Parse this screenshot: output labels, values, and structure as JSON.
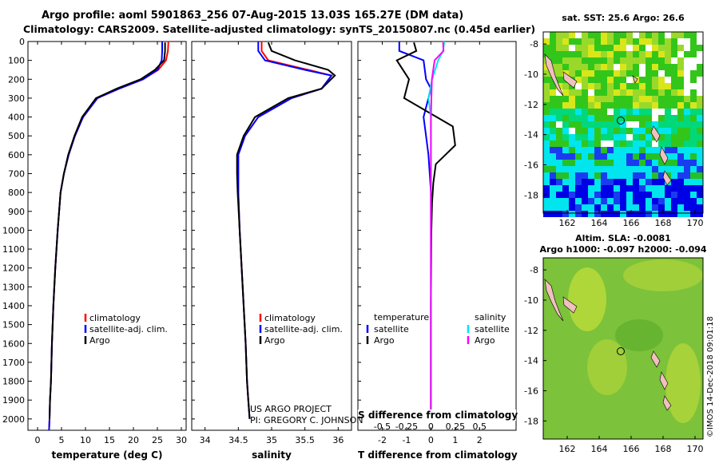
{
  "header": {
    "title": "Argo profile: aoml 5901863_256 07-Aug-2015 13.03S 165.27E (DM data)",
    "subtitle": "Climatology: CARS2009. Satellite-adjusted climatology: synTS_20150807.nc (0.45d earlier)"
  },
  "map_top": {
    "title": "sat. SST: 25.6 Argo: 26.6",
    "lon_ticks": [
      "162",
      "164",
      "166",
      "168",
      "170"
    ],
    "lat_ticks": [
      "-8",
      "-10",
      "-12",
      "-14",
      "-16",
      "-18"
    ]
  },
  "map_bottom": {
    "title1": "Altim. SLA: -0.0081",
    "title2": "Argo h1000: -0.097 h2000: -0.094",
    "lon_ticks": [
      "162",
      "164",
      "166",
      "168",
      "170"
    ],
    "lat_ticks": [
      "-8",
      "-10",
      "-12",
      "-14",
      "-16",
      "-18"
    ]
  },
  "credit": {
    "line1": "US ARGO PROJECT",
    "line2": "PI: GREGORY C. JOHNSON"
  },
  "imos_stamp": "©IMOS 14-Dec-2018 09:01:18",
  "colors": {
    "climatology": "#ff0000",
    "satellite": "#0000ff",
    "argo": "#000000",
    "sal_satellite": "#00e5ee",
    "sal_argo": "#ff00ff"
  },
  "chart_data": [
    {
      "type": "line",
      "xlabel": "temperature (deg C)",
      "ylabel": "",
      "xlim": [
        -2,
        31
      ],
      "ylim": [
        2060,
        0
      ],
      "x_ticks": [
        "0",
        "5",
        "10",
        "15",
        "20",
        "25",
        "30"
      ],
      "y_ticks": [
        "0",
        "100",
        "200",
        "300",
        "400",
        "500",
        "600",
        "700",
        "800",
        "900",
        "1000",
        "1100",
        "1200",
        "1300",
        "1400",
        "1500",
        "1600",
        "1700",
        "1800",
        "1900",
        "2000"
      ],
      "legend": [
        "climatology",
        "satellite-adj. clim.",
        "Argo"
      ],
      "series": [
        {
          "name": "climatology",
          "x": [
            27.3,
            27.2,
            26.8,
            25.2,
            22.0,
            17.0,
            12.5,
            9.5,
            7.8,
            6.5,
            5.5,
            4.8,
            4.2,
            3.7,
            3.3,
            3.0,
            2.8,
            2.6,
            2.5,
            2.4
          ],
          "y": [
            0,
            50,
            100,
            150,
            200,
            250,
            300,
            400,
            500,
            600,
            700,
            800,
            1000,
            1200,
            1400,
            1600,
            1800,
            1900,
            2000,
            2060
          ]
        },
        {
          "name": "satellite-adj. clim.",
          "x": [
            26.0,
            26.0,
            25.9,
            25.0,
            22.0,
            17.0,
            12.5,
            9.5,
            7.8,
            6.5,
            5.5,
            4.8,
            4.2,
            3.7,
            3.3,
            3.0,
            2.8,
            2.6,
            2.5,
            2.4
          ],
          "y": [
            0,
            50,
            100,
            150,
            200,
            250,
            300,
            400,
            500,
            600,
            700,
            800,
            1000,
            1200,
            1400,
            1600,
            1800,
            1900,
            2000,
            2060
          ]
        },
        {
          "name": "Argo",
          "x": [
            26.6,
            26.6,
            26.4,
            24.5,
            21.5,
            16.5,
            12.2,
            9.3,
            7.7,
            6.4,
            5.5,
            4.8,
            4.2,
            3.7,
            3.3,
            3.0,
            2.8,
            2.6,
            2.5
          ],
          "y": [
            5,
            50,
            100,
            150,
            200,
            250,
            300,
            400,
            500,
            600,
            700,
            800,
            1000,
            1200,
            1400,
            1600,
            1800,
            1900,
            2000
          ]
        }
      ]
    },
    {
      "type": "line",
      "xlabel": "salinity",
      "ylabel": "",
      "xlim": [
        33.8,
        36.2
      ],
      "ylim": [
        2060,
        0
      ],
      "x_ticks": [
        "34",
        "34.5",
        "35",
        "35.5",
        "36"
      ],
      "legend": [
        "climatology",
        "satellite-adj. clim.",
        "Argo"
      ],
      "series": [
        {
          "name": "climatology",
          "x": [
            34.85,
            34.85,
            34.95,
            35.55,
            35.9,
            35.75,
            35.3,
            34.8,
            34.6,
            34.5,
            34.5,
            34.5,
            34.52,
            34.55,
            34.58,
            34.61,
            34.63,
            34.65,
            34.67
          ],
          "y": [
            0,
            50,
            100,
            150,
            180,
            250,
            300,
            400,
            500,
            600,
            700,
            800,
            1000,
            1200,
            1400,
            1600,
            1800,
            1900,
            2000
          ]
        },
        {
          "name": "satellite-adj. clim.",
          "x": [
            34.8,
            34.8,
            34.9,
            35.5,
            35.9,
            35.75,
            35.3,
            34.8,
            34.6,
            34.5,
            34.5,
            34.5,
            34.52,
            34.55,
            34.58,
            34.61,
            34.63,
            34.65,
            34.67
          ],
          "y": [
            0,
            50,
            100,
            150,
            180,
            250,
            300,
            400,
            500,
            600,
            700,
            800,
            1000,
            1200,
            1400,
            1600,
            1800,
            1900,
            2000
          ]
        },
        {
          "name": "Argo",
          "x": [
            34.95,
            35.0,
            35.35,
            35.85,
            35.95,
            35.75,
            35.25,
            34.75,
            34.58,
            34.48,
            34.48,
            34.49,
            34.52,
            34.55,
            34.58,
            34.61,
            34.63,
            34.65,
            34.67
          ],
          "y": [
            5,
            50,
            100,
            150,
            180,
            250,
            300,
            400,
            500,
            600,
            700,
            800,
            1000,
            1200,
            1400,
            1600,
            1800,
            1900,
            2000
          ]
        }
      ]
    },
    {
      "type": "line",
      "xlabel": "T difference from climatology",
      "title": "S difference from climatology",
      "xlim": [
        -3,
        3.5
      ],
      "ylim": [
        2060,
        0
      ],
      "x_ticks": [
        "-2",
        "-1",
        "0",
        "1",
        "2"
      ],
      "top_ticks": [
        "-0.5",
        "-0.25",
        "0",
        "0.25",
        "0.5"
      ],
      "legend_left_title": "temperature",
      "legend_right_title": "salinity",
      "legend_left": [
        "satellite",
        "Argo"
      ],
      "legend_right": [
        "satellite",
        "Argo"
      ],
      "series": [
        {
          "name": "satellite",
          "x": [
            -1.3,
            -1.3,
            -0.3,
            -0.2,
            0,
            -0.1,
            -0.3,
            -0.2,
            -0.1,
            -0.05,
            0,
            0,
            0,
            0,
            0
          ],
          "y": [
            0,
            50,
            100,
            200,
            250,
            300,
            400,
            500,
            600,
            700,
            800,
            1000,
            1400,
            1800,
            2000
          ]
        },
        {
          "name": "Argo",
          "x": [
            -0.7,
            -0.6,
            -1.4,
            -0.9,
            -1.0,
            -1.1,
            0.9,
            1.0,
            0.2,
            0.1,
            0.05,
            0.02,
            0,
            0,
            0
          ],
          "y": [
            5,
            50,
            100,
            200,
            250,
            300,
            450,
            550,
            650,
            750,
            850,
            1000,
            1400,
            1800,
            2000
          ]
        },
        {
          "name": "satellite",
          "x": [
            0.55,
            0.5,
            0.3,
            0.05,
            -0.1,
            0.0,
            0.0,
            0.0,
            0.0,
            0.0,
            0.0
          ],
          "y": [
            0,
            50,
            100,
            200,
            300,
            400,
            500,
            700,
            1000,
            1500,
            2000
          ]
        },
        {
          "name": "Argo",
          "x": [
            0.5,
            0.52,
            0.15,
            0.04,
            0.02,
            0.0,
            0.0,
            0.0,
            0.0,
            0.0
          ],
          "y": [
            5,
            50,
            100,
            200,
            300,
            400,
            600,
            1000,
            1500,
            2000
          ]
        }
      ]
    }
  ]
}
